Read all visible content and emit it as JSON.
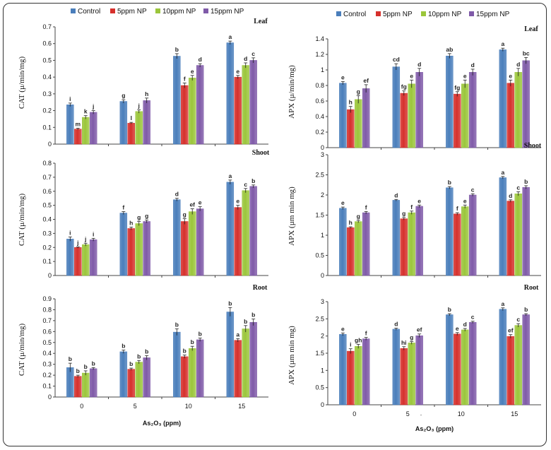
{
  "chart_data": {
    "type": "bar",
    "series_names": [
      "Control",
      "5ppm NP",
      "10ppm NP",
      "15ppm NP"
    ],
    "colors": [
      "#4a7ebb",
      "#d6302c",
      "#9bc63b",
      "#7f5aa8"
    ],
    "categories": [
      "0",
      "5",
      "10",
      "15"
    ],
    "xlabel": "As₂O₃ (ppm)",
    "stray_mark": ".",
    "panels": [
      {
        "id": "cat-leaf",
        "organ": "Leaf",
        "ylabel": "CAT (µ/min/mg)",
        "ylim": [
          0,
          0.7
        ],
        "yticks": [
          "0",
          "0.1",
          "0.2",
          "0.3",
          "0.4",
          "0.5",
          "0.6",
          "0.7"
        ],
        "values": [
          [
            0.235,
            0.09,
            0.16,
            0.19
          ],
          [
            0.255,
            0.125,
            0.195,
            0.26
          ],
          [
            0.525,
            0.35,
            0.395,
            0.47
          ],
          [
            0.605,
            0.4,
            0.47,
            0.5
          ]
        ],
        "errors": [
          [
            0.01,
            0.005,
            0.01,
            0.01
          ],
          [
            0.01,
            0.005,
            0.01,
            0.015
          ],
          [
            0.015,
            0.015,
            0.015,
            0.01
          ],
          [
            0.01,
            0.01,
            0.015,
            0.015
          ]
        ],
        "labels": [
          [
            "i",
            "m",
            "k",
            "j"
          ],
          [
            "g",
            "l",
            "j",
            "h"
          ],
          [
            "b",
            "f",
            "e",
            "d"
          ],
          [
            "a",
            "e",
            "d",
            "c"
          ]
        ]
      },
      {
        "id": "apx-leaf",
        "organ": "Leaf",
        "ylabel": "APX (µ/min/mg)",
        "ylim": [
          0,
          1.4
        ],
        "yticks": [
          "0",
          "0.2",
          "0.4",
          "0.6",
          "0.8",
          "1",
          "1.2",
          "1.4"
        ],
        "values": [
          [
            0.83,
            0.49,
            0.62,
            0.76
          ],
          [
            1.04,
            0.7,
            0.82,
            0.97
          ],
          [
            1.18,
            0.69,
            0.82,
            0.97
          ],
          [
            1.26,
            0.83,
            0.97,
            1.12
          ]
        ],
        "errors": [
          [
            0.02,
            0.04,
            0.05,
            0.05
          ],
          [
            0.04,
            0.03,
            0.05,
            0.05
          ],
          [
            0.03,
            0.03,
            0.05,
            0.04
          ],
          [
            0.02,
            0.04,
            0.05,
            0.04
          ]
        ],
        "labels": [
          [
            "e",
            "h",
            "g",
            "ef"
          ],
          [
            "cd",
            "fg",
            "e",
            "d"
          ],
          [
            "ab",
            "fg",
            "e",
            "d"
          ],
          [
            "a",
            "e",
            "d",
            "bc"
          ]
        ]
      },
      {
        "id": "cat-shoot",
        "organ": "Shoot",
        "ylabel": "CAT (µ/min/mg)",
        "ylim": [
          0,
          0.8
        ],
        "yticks": [
          "0",
          "0.1",
          "0.2",
          "0.3",
          "0.4",
          "0.5",
          "0.6",
          "0.7",
          "0.8"
        ],
        "values": [
          [
            0.26,
            0.2,
            0.22,
            0.255
          ],
          [
            0.445,
            0.335,
            0.37,
            0.385
          ],
          [
            0.54,
            0.385,
            0.455,
            0.475
          ],
          [
            0.665,
            0.485,
            0.605,
            0.635
          ]
        ],
        "errors": [
          [
            0.015,
            0.005,
            0.01,
            0.01
          ],
          [
            0.01,
            0.01,
            0.015,
            0.01
          ],
          [
            0.01,
            0.02,
            0.02,
            0.015
          ],
          [
            0.015,
            0.015,
            0.015,
            0.01
          ]
        ],
        "labels": [
          [
            "i",
            "j",
            "j",
            "i"
          ],
          [
            "f",
            "h",
            "g",
            "g"
          ],
          [
            "d",
            "g",
            "ef",
            "e"
          ],
          [
            "a",
            "e",
            "c",
            "b"
          ]
        ]
      },
      {
        "id": "apx-shoot",
        "organ": "Shoot",
        "ylabel": "APX (µm min mg)",
        "ylim": [
          0,
          3
        ],
        "yticks": [
          "0",
          "0.5",
          "1",
          "1.5",
          "2",
          "2.5",
          "3"
        ],
        "values": [
          [
            1.67,
            1.19,
            1.34,
            1.56
          ],
          [
            1.87,
            1.41,
            1.56,
            1.72
          ],
          [
            2.18,
            1.53,
            1.71,
            2.0
          ],
          [
            2.43,
            1.85,
            2.03,
            2.19
          ]
        ],
        "errors": [
          [
            0.03,
            0.02,
            0.03,
            0.03
          ],
          [
            0.02,
            0.03,
            0.04,
            0.03
          ],
          [
            0.03,
            0.03,
            0.04,
            0.03
          ],
          [
            0.03,
            0.03,
            0.05,
            0.04
          ]
        ],
        "labels": [
          [
            "e",
            "h",
            "g",
            "f"
          ],
          [
            "d",
            "g",
            "f",
            "e"
          ],
          [
            "b",
            "f",
            "e",
            "c"
          ],
          [
            "a",
            "d",
            "c",
            "b"
          ]
        ]
      },
      {
        "id": "cat-root",
        "organ": "Root",
        "ylabel": "CAT (µ/min/mg)",
        "ylim": [
          0,
          0.9
        ],
        "yticks": [
          "0",
          "0.1",
          "0.2",
          "0.3",
          "0.4",
          "0.5",
          "0.6",
          "0.7",
          "0.8",
          "0.9"
        ],
        "values": [
          [
            0.27,
            0.19,
            0.22,
            0.26
          ],
          [
            0.415,
            0.255,
            0.32,
            0.36
          ],
          [
            0.595,
            0.37,
            0.445,
            0.525
          ],
          [
            0.78,
            0.52,
            0.625,
            0.685
          ]
        ],
        "errors": [
          [
            0.04,
            0.01,
            0.02,
            0.01
          ],
          [
            0.015,
            0.01,
            0.015,
            0.02
          ],
          [
            0.03,
            0.015,
            0.02,
            0.015
          ],
          [
            0.04,
            0.015,
            0.03,
            0.03
          ]
        ],
        "labels": [
          [
            "b",
            "b",
            "b",
            "b"
          ],
          [
            "b",
            "b",
            "b",
            "b"
          ],
          [
            "b",
            "b",
            "b",
            "b"
          ],
          [
            "b",
            "a",
            "b",
            "b"
          ]
        ]
      },
      {
        "id": "apx-root",
        "organ": "Root",
        "ylabel": "APX (µm min mg)",
        "ylim": [
          0,
          3
        ],
        "yticks": [
          "0",
          "0.5",
          "1",
          "1.5",
          "2",
          "2.5",
          "3"
        ],
        "values": [
          [
            2.05,
            1.56,
            1.7,
            1.92
          ],
          [
            2.2,
            1.64,
            1.8,
            2.01
          ],
          [
            2.62,
            2.06,
            2.18,
            2.4
          ],
          [
            2.78,
            1.99,
            2.31,
            2.62
          ]
        ],
        "errors": [
          [
            0.04,
            0.07,
            0.06,
            0.04
          ],
          [
            0.03,
            0.05,
            0.04,
            0.05
          ],
          [
            0.03,
            0.04,
            0.04,
            0.03
          ],
          [
            0.04,
            0.05,
            0.05,
            0.03
          ]
        ],
        "labels": [
          [
            "e",
            "i",
            "gh",
            "f"
          ],
          [
            "d",
            "hi",
            "g",
            "ef"
          ],
          [
            "b",
            "e",
            "d",
            "c"
          ],
          [
            "a",
            "ef",
            "c",
            "b"
          ]
        ]
      }
    ]
  }
}
